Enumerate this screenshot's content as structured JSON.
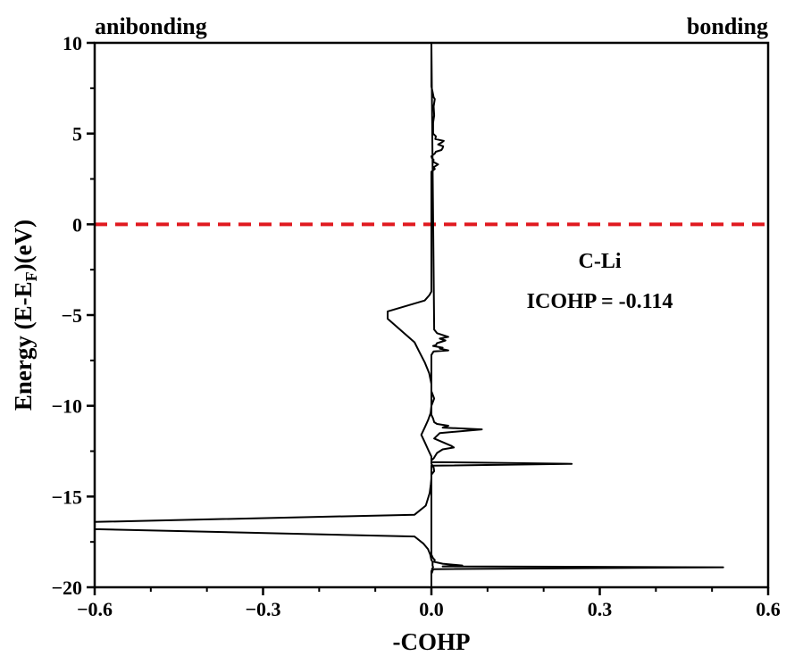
{
  "chart_data": {
    "type": "line",
    "xlabel": "-COHP",
    "ylabel_parts": {
      "main": "Energy (E-E",
      "sub": "F",
      "end": ")(eV)"
    },
    "xlim": [
      -0.6,
      0.6
    ],
    "ylim": [
      -20,
      10
    ],
    "xticks": [
      -0.6,
      -0.3,
      0.0,
      0.3,
      0.6
    ],
    "xtick_labels": [
      "−0.6",
      "−0.3",
      "0.0",
      "0.3",
      "0.6"
    ],
    "yticks": [
      10,
      5,
      0,
      -5,
      -10,
      -15,
      -20
    ],
    "ytick_labels": [
      "10",
      "5",
      "0",
      "−5",
      "−10",
      "−15",
      "−20"
    ],
    "corner_labels": {
      "left": "anibonding",
      "right": "bonding"
    },
    "fermi_level": {
      "y": 0,
      "color": "#e0191f",
      "style": "dashed"
    },
    "annotations": [
      {
        "text": "C-Li",
        "x": 0.3,
        "y": -2.4
      },
      {
        "text": "ICOHP = -0.114",
        "x": 0.3,
        "y": -4.6
      }
    ],
    "grid": false,
    "line_color": "#000000",
    "series": [
      {
        "x": [
          0.0,
          0.0,
          0.001,
          0.002,
          0.001,
          0.003,
          0.002,
          0.002,
          0.0,
          -0.002,
          -0.006,
          -0.014,
          -0.03,
          -0.6,
          -0.6,
          -0.03,
          -0.01,
          -0.003,
          -0.001,
          0.0,
          0.0,
          0.005,
          0.004,
          0.0,
          0.0,
          -0.006,
          -0.012,
          -0.018,
          -0.012,
          -0.006,
          -0.0015,
          0.0,
          0.005,
          0.0,
          0.0,
          -0.004,
          -0.012,
          -0.022,
          -0.03,
          -0.078,
          -0.078,
          -0.012,
          -0.0035,
          0.0,
          0.0,
          0.0,
          0.006,
          0.004,
          0.012,
          0.003,
          0.004,
          0.001,
          0.0,
          0.006,
          0.008,
          0.018,
          0.02,
          0.021,
          0.012,
          0.018,
          0.022,
          0.007,
          0.008,
          0.003,
          0.003,
          0.003,
          0.005,
          0.004,
          0.006,
          0.004,
          0.002,
          0.0,
          0.0,
          0.0,
          0.005,
          0.01,
          0.03,
          0.015,
          0.025,
          0.01,
          0.008,
          0.003,
          0.02,
          0.015,
          0.03,
          0.004,
          0.0,
          0.0,
          0.0,
          0.003,
          0.005,
          0.01,
          0.03,
          0.025,
          0.02,
          0.09,
          0.015,
          0.005,
          0.035,
          0.04,
          0.02,
          0.01,
          0.004,
          0.0,
          0.0,
          0.0,
          0.25,
          0.0,
          0.0,
          0.0,
          0.003,
          0.006,
          0.005,
          0.02,
          0.055,
          0.02,
          0.52,
          0.005,
          0.0,
          0.0
        ],
        "y": [
          -20,
          -19.25,
          -19.2,
          -19.1,
          -19.0,
          -18.9,
          -18.8,
          -18.6,
          -18.5,
          -18.2,
          -17.9,
          -17.6,
          -17.2,
          -16.8,
          -16.4,
          -16.0,
          -15.5,
          -14.8,
          -14.3,
          -14.0,
          -13.8,
          -13.6,
          -13.4,
          -13.2,
          -12.8,
          -12.4,
          -12.0,
          -11.6,
          -11.2,
          -10.8,
          -10.4,
          -10.0,
          -9.6,
          -9.2,
          -8.8,
          -8.2,
          -7.6,
          -7.0,
          -6.5,
          -5.2,
          -4.8,
          -4.2,
          -3.9,
          -3.7,
          0.0,
          2.9,
          3.05,
          3.15,
          3.3,
          3.45,
          3.55,
          3.65,
          3.75,
          3.9,
          4.0,
          4.1,
          4.2,
          4.3,
          4.4,
          4.5,
          4.6,
          4.7,
          4.85,
          5.0,
          5.3,
          5.6,
          6.0,
          6.5,
          6.9,
          7.0,
          7.3,
          7.6,
          8.0,
          10.0,
          -5.8,
          -6.0,
          -6.2,
          -6.3,
          -6.4,
          -6.55,
          -6.65,
          -6.7,
          -6.8,
          -6.85,
          -6.95,
          -7.0,
          -7.2,
          -10.0,
          -10.5,
          -10.7,
          -10.9,
          -11.0,
          -11.1,
          -11.15,
          -11.2,
          -11.3,
          -11.5,
          -11.8,
          -12.2,
          -12.3,
          -12.4,
          -12.6,
          -12.9,
          -13.0,
          -13.08,
          -13.1,
          -13.2,
          -13.3,
          -18.0,
          -18.2,
          -18.4,
          -18.5,
          -18.6,
          -18.7,
          -18.8,
          -18.85,
          -18.9,
          -19.0,
          -19.1,
          -20.0
        ]
      }
    ]
  }
}
